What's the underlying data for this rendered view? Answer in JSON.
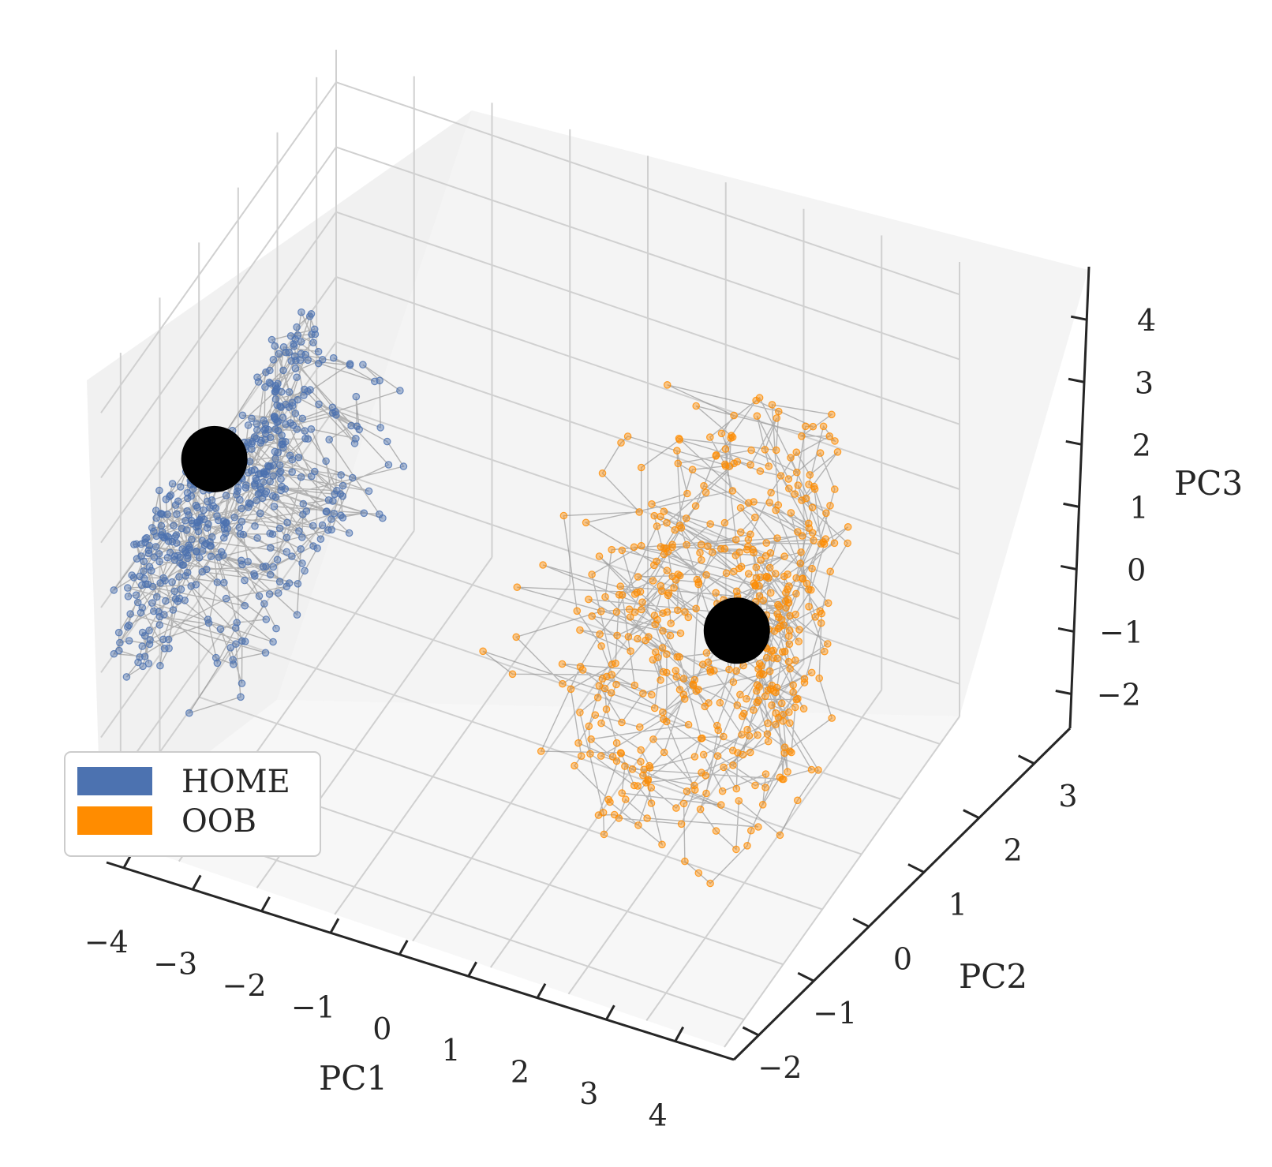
{
  "chart_data": {
    "type": "scatter",
    "projection": "3d",
    "title": "",
    "xlabel": "PC1",
    "ylabel": "PC2",
    "zlabel": "PC3",
    "xticks": [
      "−4",
      "−3",
      "−2",
      "−1",
      "0",
      "1",
      "2",
      "3",
      "4"
    ],
    "yticks": [
      "−2",
      "−1",
      "0",
      "1",
      "2",
      "3"
    ],
    "zticks": [
      "−2",
      "−1",
      "0",
      "1",
      "2",
      "3",
      "4"
    ],
    "xlim": [
      -4,
      4
    ],
    "ylim": [
      -2.5,
      3.5
    ],
    "zlim": [
      -2.5,
      4.5
    ],
    "grid": true,
    "legend": {
      "placement": "lower-left"
    },
    "series": [
      {
        "name": "HOME",
        "color": "#4c72b0",
        "style": "points connected by thin gray trajectory lines",
        "centroid": [
          -3.3,
          -1.0,
          2.3
        ],
        "x_range": [
          -4.0,
          0.8
        ],
        "y_range": [
          -2.2,
          2.5
        ],
        "z_range": [
          -2.2,
          4.2
        ]
      },
      {
        "name": "OOB",
        "color": "#ff8c00",
        "style": "points connected by thin gray trajectory lines",
        "centroid": [
          2.5,
          0.8,
          0.5
        ],
        "x_range": [
          -1.0,
          4.0
        ],
        "y_range": [
          -2.2,
          3.0
        ],
        "z_range": [
          -2.2,
          3.5
        ]
      }
    ],
    "markers": [
      {
        "color": "#000000",
        "kind": "centroid",
        "series": "HOME",
        "at": [
          -3.3,
          -1.0,
          2.3
        ]
      },
      {
        "color": "#000000",
        "kind": "centroid",
        "series": "OOB",
        "at": [
          2.5,
          0.8,
          0.5
        ]
      }
    ],
    "line_color": "#808080"
  }
}
